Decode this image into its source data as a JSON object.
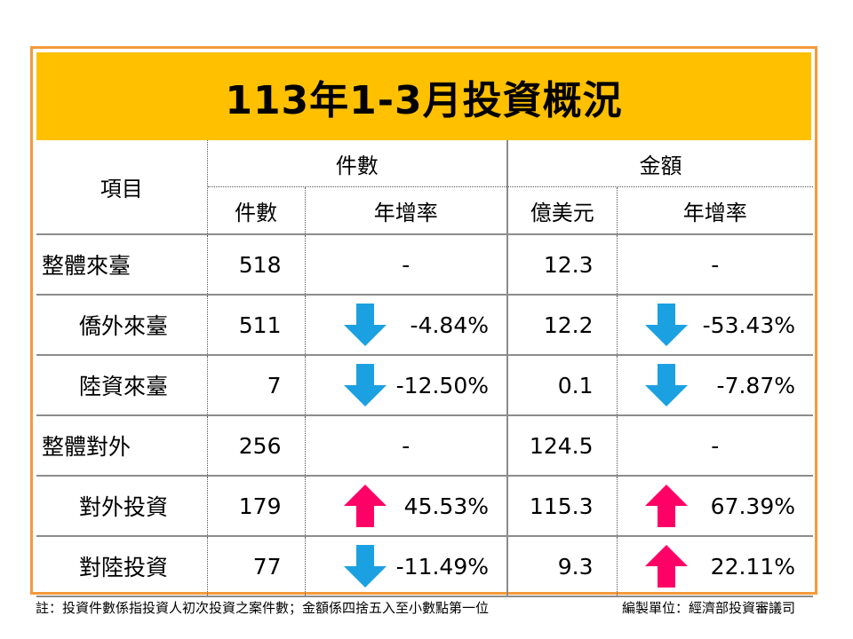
{
  "title": "113年1-3月投資概況",
  "header": {
    "item": "項目",
    "group_count": "件數",
    "group_amount": "金額",
    "sub_count": "件數",
    "sub_count_rate": "年增率",
    "sub_amount": "億美元",
    "sub_amount_rate": "年增率"
  },
  "rows": [
    {
      "label": "整體來臺",
      "count": "518",
      "count_rate": "-",
      "count_dir": "none",
      "amount": "12.3",
      "amount_rate": "-",
      "amount_dir": "none"
    },
    {
      "label": "僑外來臺",
      "count": "511",
      "count_rate": "-4.84%",
      "count_dir": "down",
      "amount": "12.2",
      "amount_rate": "-53.43%",
      "amount_dir": "down"
    },
    {
      "label": "陸資來臺",
      "count": "7",
      "count_rate": "-12.50%",
      "count_dir": "down",
      "amount": "0.1",
      "amount_rate": "-7.87%",
      "amount_dir": "down"
    },
    {
      "label": "整體對外",
      "count": "256",
      "count_rate": "-",
      "count_dir": "none",
      "amount": "124.5",
      "amount_rate": "-",
      "amount_dir": "none"
    },
    {
      "label": "對外投資",
      "count": "179",
      "count_rate": "45.53%",
      "count_dir": "up",
      "amount": "115.3",
      "amount_rate": "67.39%",
      "amount_dir": "up"
    },
    {
      "label": "對陸投資",
      "count": "77",
      "count_rate": "-11.49%",
      "count_dir": "down",
      "amount": "9.3",
      "amount_rate": "22.11%",
      "amount_dir": "up"
    }
  ],
  "colors": {
    "down_arrow": "#1ba1e2",
    "up_arrow": "#ff0066",
    "title_bg": "#ffc000",
    "frame": "#f59a3a"
  },
  "footer": {
    "note": "註：投資件數係指投資人初次投資之案件數；金額係四捨五入至小數點第一位",
    "source": "編製單位：經濟部投資審議司"
  }
}
